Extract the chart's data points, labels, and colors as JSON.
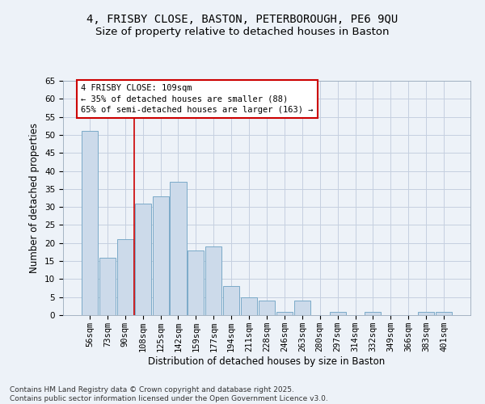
{
  "title_line1": "4, FRISBY CLOSE, BASTON, PETERBOROUGH, PE6 9QU",
  "title_line2": "Size of property relative to detached houses in Baston",
  "xlabel": "Distribution of detached houses by size in Baston",
  "ylabel": "Number of detached properties",
  "categories": [
    "56sqm",
    "73sqm",
    "90sqm",
    "108sqm",
    "125sqm",
    "142sqm",
    "159sqm",
    "177sqm",
    "194sqm",
    "211sqm",
    "228sqm",
    "246sqm",
    "263sqm",
    "280sqm",
    "297sqm",
    "314sqm",
    "332sqm",
    "349sqm",
    "366sqm",
    "383sqm",
    "401sqm"
  ],
  "values": [
    51,
    16,
    21,
    31,
    33,
    37,
    18,
    19,
    8,
    5,
    4,
    1,
    4,
    0,
    1,
    0,
    1,
    0,
    0,
    1,
    1
  ],
  "bar_color": "#ccdaea",
  "bar_edge_color": "#7aaac8",
  "ylim": [
    0,
    65
  ],
  "yticks": [
    0,
    5,
    10,
    15,
    20,
    25,
    30,
    35,
    40,
    45,
    50,
    55,
    60,
    65
  ],
  "grid_color": "#c5cfe0",
  "background_color": "#edf2f8",
  "annotation_text": "4 FRISBY CLOSE: 109sqm\n← 35% of detached houses are smaller (88)\n65% of semi-detached houses are larger (163) →",
  "vline_position": 2.5,
  "annotation_box_color": "#ffffff",
  "annotation_box_edge": "#cc0000",
  "vline_color": "#cc0000",
  "footer_line1": "Contains HM Land Registry data © Crown copyright and database right 2025.",
  "footer_line2": "Contains public sector information licensed under the Open Government Licence v3.0.",
  "title_fontsize": 10,
  "subtitle_fontsize": 9.5,
  "axis_label_fontsize": 8.5,
  "tick_fontsize": 7.5,
  "annotation_fontsize": 7.5,
  "footer_fontsize": 6.5
}
